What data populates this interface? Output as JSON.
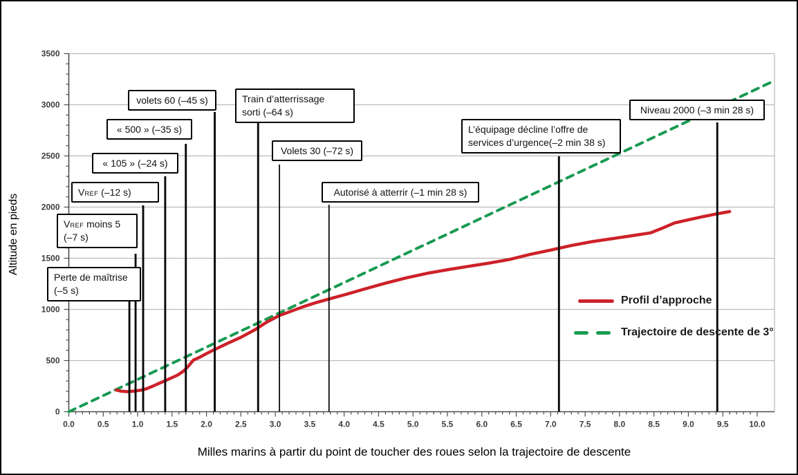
{
  "figure": {
    "background": "#ffffff",
    "border_color": "#000000"
  },
  "chart_data": {
    "type": "line",
    "title": "",
    "xlabel": "Milles marins à partir du point de toucher des roues selon la trajectoire de descente",
    "ylabel": "Altitude en pieds",
    "xlim": [
      0,
      10
    ],
    "ylim": [
      0,
      3500
    ],
    "x_tick_step": 0.5,
    "x_minor_step": 0.1,
    "y_tick_step": 500,
    "y_minor_step": 100,
    "grid": "horizontal",
    "gridline_color": "#b9b9b9",
    "axis_color": "#4d4d4d",
    "legend_position": "inside-right",
    "series": [
      {
        "name": "Profil d’approche",
        "color": "#cd2129",
        "style": "solid",
        "points": [
          [
            0.69,
            212
          ],
          [
            0.76,
            201
          ],
          [
            0.85,
            196
          ],
          [
            0.95,
            202
          ],
          [
            1.04,
            210
          ],
          [
            1.12,
            222
          ],
          [
            1.22,
            250
          ],
          [
            1.32,
            280
          ],
          [
            1.45,
            318
          ],
          [
            1.58,
            358
          ],
          [
            1.67,
            398
          ],
          [
            1.74,
            448
          ],
          [
            1.81,
            505
          ],
          [
            1.9,
            532
          ],
          [
            2.0,
            568
          ],
          [
            2.12,
            608
          ],
          [
            2.3,
            666
          ],
          [
            2.5,
            728
          ],
          [
            2.7,
            800
          ],
          [
            2.88,
            878
          ],
          [
            3.05,
            938
          ],
          [
            3.2,
            975
          ],
          [
            3.4,
            1025
          ],
          [
            3.6,
            1068
          ],
          [
            3.78,
            1102
          ],
          [
            4.0,
            1142
          ],
          [
            4.3,
            1200
          ],
          [
            4.6,
            1256
          ],
          [
            4.9,
            1308
          ],
          [
            5.2,
            1352
          ],
          [
            5.5,
            1388
          ],
          [
            5.8,
            1420
          ],
          [
            6.1,
            1452
          ],
          [
            6.4,
            1488
          ],
          [
            6.7,
            1538
          ],
          [
            7.0,
            1580
          ],
          [
            7.3,
            1624
          ],
          [
            7.6,
            1662
          ],
          [
            7.9,
            1692
          ],
          [
            8.2,
            1722
          ],
          [
            8.45,
            1748
          ],
          [
            8.6,
            1788
          ],
          [
            8.8,
            1845
          ],
          [
            9.0,
            1876
          ],
          [
            9.2,
            1905
          ],
          [
            9.4,
            1932
          ],
          [
            9.6,
            1956
          ]
        ]
      },
      {
        "name": "Trajectoire de descente de 3°",
        "color": "#189a52",
        "style": "dashed",
        "points": [
          [
            0,
            0
          ],
          [
            10.25,
            3235
          ]
        ]
      }
    ],
    "events": [
      {
        "id": "perte",
        "nm": 0.88,
        "label": "Perte de maîtrise (–5 s)",
        "lines": [
          "Perte de maîtrise",
          "(–5 s)"
        ]
      },
      {
        "id": "vref-moins-5",
        "nm": 0.97,
        "label": "Vref moins 5 (–7 s)",
        "lines": [
          "Vref moins 5",
          "(–7 s)"
        ]
      },
      {
        "id": "vref",
        "nm": 1.08,
        "label": "Vref (–12 s)",
        "lines": [
          "Vref (–12 s)"
        ]
      },
      {
        "id": "v105",
        "nm": 1.4,
        "label": "« 105 » (–24 s)",
        "lines": [
          "« 105 » (–24 s)"
        ]
      },
      {
        "id": "v500",
        "nm": 1.7,
        "label": "« 500 » (–35 s)",
        "lines": [
          "« 500 » (–35 s)"
        ]
      },
      {
        "id": "volets60",
        "nm": 2.12,
        "label": "volets 60 (–45 s)",
        "lines": [
          "volets 60 (–45 s)"
        ]
      },
      {
        "id": "train",
        "nm": 2.75,
        "label": "Train d’atterrissage sorti (–64 s)",
        "lines": [
          "Train d’atterrissage",
          "sorti (–64 s)"
        ]
      },
      {
        "id": "volets30",
        "nm": 3.06,
        "label": "Volets 30 (–72 s)",
        "lines": [
          "Volets 30 (–72 s)"
        ]
      },
      {
        "id": "autorise",
        "nm": 3.78,
        "label": "Autorisé à atterrir (–1 min 28 s)",
        "lines": [
          "Autorisé à atterrir (–1 min 28 s)"
        ]
      },
      {
        "id": "equipage",
        "nm": 7.12,
        "label": "L’équipage décline l’offre de services d’urgence(–2 min 38 s)",
        "lines": [
          "L’équipage décline l’offre de",
          "services d’urgence(–2 min 38 s)"
        ]
      },
      {
        "id": "niveau",
        "nm": 9.42,
        "label": "Niveau 2000 (–3 min 28 s)",
        "lines": [
          "Niveau 2000 (–3 min 28 s)"
        ]
      }
    ]
  }
}
